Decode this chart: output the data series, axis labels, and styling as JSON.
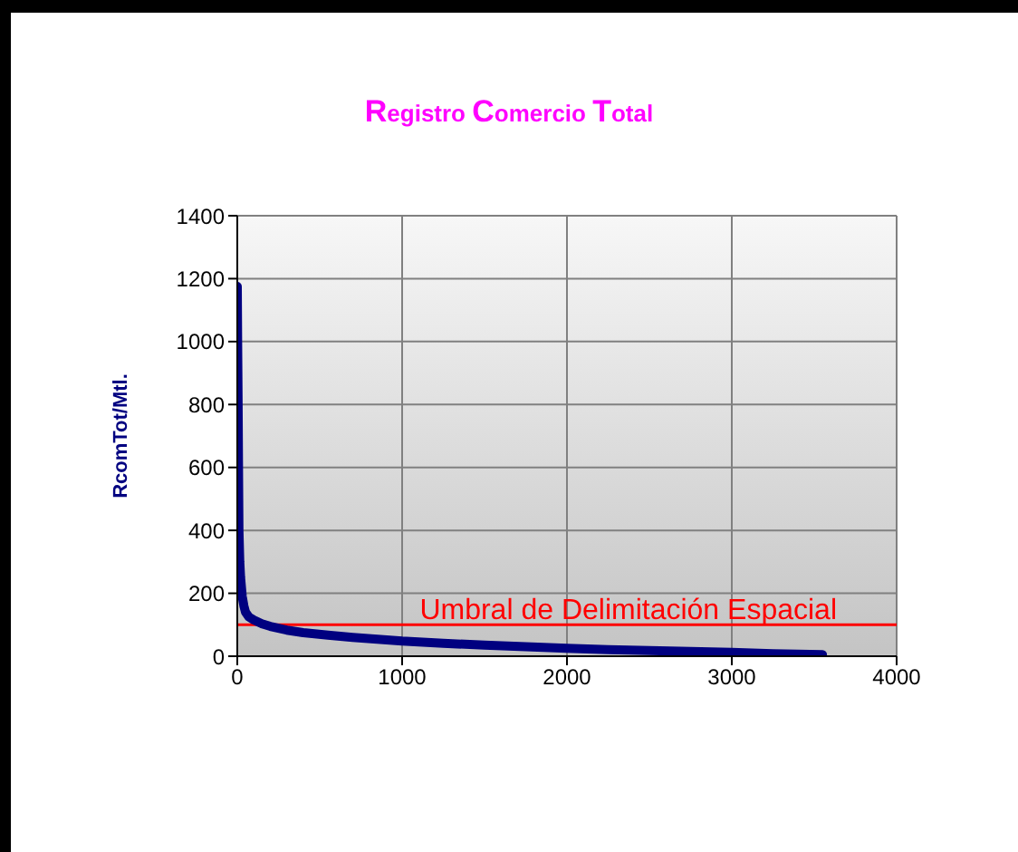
{
  "chart_data": {
    "type": "line",
    "title": "Registro Comercio Total",
    "ylabel": "RcomTot/Mtl.",
    "x": [
      0,
      2,
      5,
      8,
      10,
      15,
      20,
      30,
      40,
      50,
      70,
      100,
      150,
      200,
      300,
      400,
      550,
      700,
      850,
      1000,
      1250,
      1500,
      1750,
      2000,
      2250,
      2500,
      2750,
      3000,
      3250,
      3550
    ],
    "series": [
      {
        "color": "#000080",
        "values": [
          1175,
          1000,
          800,
          550,
          400,
          300,
          250,
          190,
          160,
          140,
          125,
          115,
          103,
          95,
          83,
          75,
          67,
          60,
          54,
          48,
          41,
          35,
          30,
          25,
          21,
          18,
          15,
          12,
          8,
          5
        ]
      }
    ],
    "xlim": [
      0,
      4000
    ],
    "xticks": [
      0,
      1000,
      2000,
      3000,
      4000
    ],
    "ylim": [
      0,
      1400
    ],
    "yticks": [
      0,
      200,
      400,
      600,
      800,
      1000,
      1200,
      1400
    ],
    "grid": true,
    "marker": "none",
    "line_style": "solid",
    "ref_lines": [
      {
        "axis": "y",
        "value": 100,
        "label": "Umbral de Delimitación Espacial",
        "color": "#ff0000"
      }
    ]
  }
}
